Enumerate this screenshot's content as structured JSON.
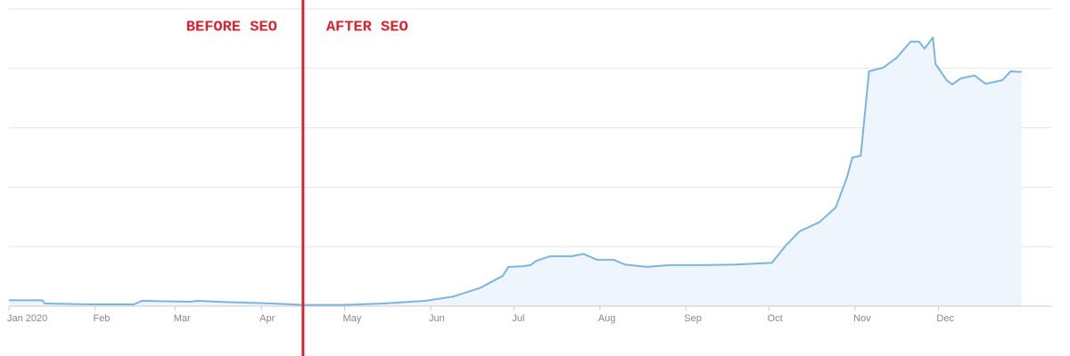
{
  "chart_data": {
    "type": "area",
    "xlim": [
      0,
      376
    ],
    "xticks": [
      {
        "value": 0,
        "label": "Jan 2020"
      },
      {
        "value": 31,
        "label": "Feb"
      },
      {
        "value": 60,
        "label": "Mar"
      },
      {
        "value": 91,
        "label": "Apr"
      },
      {
        "value": 121,
        "label": "May"
      },
      {
        "value": 152,
        "label": "Jun"
      },
      {
        "value": 182,
        "label": "Jul"
      },
      {
        "value": 213,
        "label": "Aug"
      },
      {
        "value": 244,
        "label": "Sep"
      },
      {
        "value": 274,
        "label": "Oct"
      },
      {
        "value": 305,
        "label": "Nov"
      },
      {
        "value": 335,
        "label": "Dec"
      }
    ],
    "ylim": [
      0,
      5
    ],
    "yticks": [
      0,
      1,
      2,
      3,
      4,
      5
    ],
    "grid": true,
    "series": [
      {
        "color": "#7ab5e0",
        "fill": "#eef5fc",
        "x": [
          0,
          12,
          13,
          30,
          45,
          48,
          65,
          68,
          78,
          95,
          106,
          120,
          135,
          150,
          160,
          170,
          178,
          180,
          185,
          188,
          190,
          195,
          203,
          207,
          212,
          218,
          222,
          230,
          238,
          250,
          262,
          275,
          280,
          285,
          292,
          298,
          302,
          304,
          307,
          310,
          315,
          320,
          325,
          328,
          330,
          333,
          334,
          338,
          340,
          343,
          348,
          352,
          358,
          361,
          365
        ],
        "values": [
          0.1,
          0.1,
          0.045,
          0.03,
          0.03,
          0.09,
          0.075,
          0.09,
          0.07,
          0.045,
          0.02,
          0.02,
          0.045,
          0.09,
          0.16,
          0.31,
          0.51,
          0.66,
          0.67,
          0.69,
          0.76,
          0.84,
          0.84,
          0.88,
          0.78,
          0.78,
          0.7,
          0.66,
          0.69,
          0.69,
          0.7,
          0.73,
          1.02,
          1.26,
          1.41,
          1.66,
          2.16,
          2.5,
          2.53,
          3.95,
          4.01,
          4.18,
          4.45,
          4.45,
          4.33,
          4.52,
          4.07,
          3.8,
          3.73,
          3.83,
          3.88,
          3.74,
          3.8,
          3.95,
          3.94
        ]
      }
    ],
    "marker_line": {
      "x": 106,
      "color": "#d9232e"
    },
    "annotations": [
      {
        "text": "BEFORE SEO"
      },
      {
        "text": "AFTER SEO"
      }
    ]
  }
}
